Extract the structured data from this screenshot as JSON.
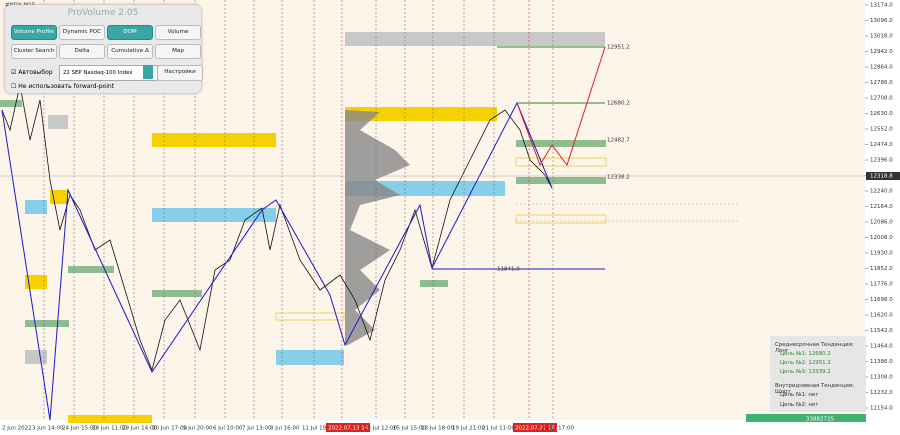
{
  "symbol": "#NDX,M15",
  "panel": {
    "title": "ProVolume 2.05",
    "buttons": [
      "Volume Profile",
      "Dynamic POC",
      "DOM",
      "Volume",
      "Cluster Search",
      "Delta",
      "Cumulative Δ",
      "Map"
    ],
    "auto_select": "Автовыбор",
    "instrument": "22 SEP Nasdaq-100 Index",
    "settings": "Настройки",
    "forward_point": "Не использовать forward-point"
  },
  "price_axis": [
    "13174.0",
    "13096.0",
    "13018.0",
    "12942.0",
    "12864.0",
    "12786.0",
    "12708.0",
    "12630.0",
    "12552.0",
    "12474.0",
    "12396.0",
    "12318.0",
    "12240.0",
    "12164.0",
    "12086.0",
    "12008.0",
    "11930.0",
    "11852.0",
    "11776.0",
    "11698.0",
    "11620.0",
    "11542.0",
    "11464.0",
    "11386.0",
    "11308.0",
    "11232.0",
    "11154.0"
  ],
  "current_price": "12318.8",
  "time_axis": [
    "2 Jun 2022",
    "3 Jun 14:00",
    "24 Jun 15:00",
    "28 Jun 11:00",
    "29 Jun 14:00",
    "30 Jun 17:00",
    "5 Jul 20:00",
    "6 Jul 10:00",
    "7 Jul 13:00",
    "8 Jul 16:00",
    "11 Jul 19:00",
    "2022.07.13 16:00",
    "14 Jul 12:00",
    "15 Jul 15:00",
    "18 Jul 18:00",
    "19 Jul 21:00",
    "21 Jul 11:00",
    "2022.07.22 16:00",
    "25 Jul 17:00"
  ],
  "levels": [
    "12951.2",
    "12680.2",
    "12482.7",
    "12338.2",
    "11841.0"
  ],
  "info": [
    "Среднесрочная Тенденция: Лонг",
    "Цель №1: 12680.2",
    "Цель №2: 12951.2",
    "Цель №3: 13339.2",
    "Внутридневная Тенденция: Шорт",
    "Цель №1: нет",
    "Цель №2: нет"
  ],
  "volume_bar": [
    "3388",
    "2725"
  ]
}
